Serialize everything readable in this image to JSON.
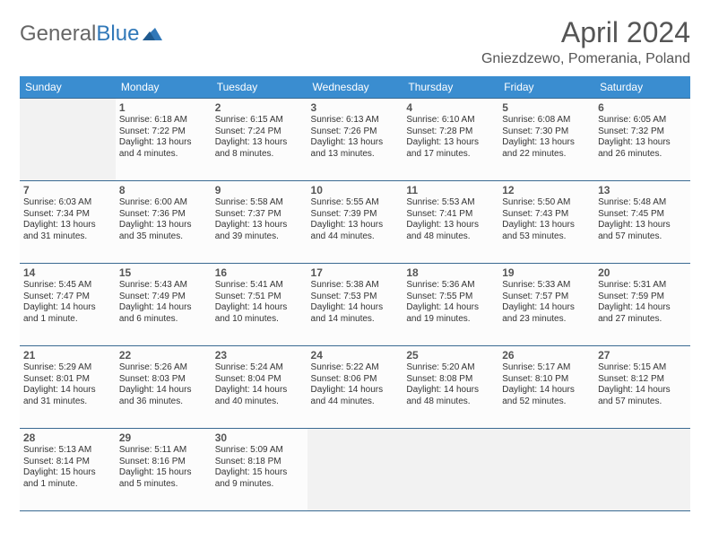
{
  "logo": {
    "text_gray": "General",
    "text_blue": "Blue"
  },
  "title": "April 2024",
  "location": "Gniezdzewo, Pomerania, Poland",
  "day_headers": [
    "Sunday",
    "Monday",
    "Tuesday",
    "Wednesday",
    "Thursday",
    "Friday",
    "Saturday"
  ],
  "colors": {
    "header_bg": "#3a8dd0",
    "header_text": "#ffffff",
    "cell_border": "#3a6a92",
    "blank_bg": "#f2f2f2",
    "text": "#333333",
    "title_text": "#555555"
  },
  "grid": {
    "first_day_column": 1,
    "days_in_month": 30
  },
  "days": {
    "1": {
      "sunrise": "6:18 AM",
      "sunset": "7:22 PM",
      "daylight": "13 hours and 4 minutes."
    },
    "2": {
      "sunrise": "6:15 AM",
      "sunset": "7:24 PM",
      "daylight": "13 hours and 8 minutes."
    },
    "3": {
      "sunrise": "6:13 AM",
      "sunset": "7:26 PM",
      "daylight": "13 hours and 13 minutes."
    },
    "4": {
      "sunrise": "6:10 AM",
      "sunset": "7:28 PM",
      "daylight": "13 hours and 17 minutes."
    },
    "5": {
      "sunrise": "6:08 AM",
      "sunset": "7:30 PM",
      "daylight": "13 hours and 22 minutes."
    },
    "6": {
      "sunrise": "6:05 AM",
      "sunset": "7:32 PM",
      "daylight": "13 hours and 26 minutes."
    },
    "7": {
      "sunrise": "6:03 AM",
      "sunset": "7:34 PM",
      "daylight": "13 hours and 31 minutes."
    },
    "8": {
      "sunrise": "6:00 AM",
      "sunset": "7:36 PM",
      "daylight": "13 hours and 35 minutes."
    },
    "9": {
      "sunrise": "5:58 AM",
      "sunset": "7:37 PM",
      "daylight": "13 hours and 39 minutes."
    },
    "10": {
      "sunrise": "5:55 AM",
      "sunset": "7:39 PM",
      "daylight": "13 hours and 44 minutes."
    },
    "11": {
      "sunrise": "5:53 AM",
      "sunset": "7:41 PM",
      "daylight": "13 hours and 48 minutes."
    },
    "12": {
      "sunrise": "5:50 AM",
      "sunset": "7:43 PM",
      "daylight": "13 hours and 53 minutes."
    },
    "13": {
      "sunrise": "5:48 AM",
      "sunset": "7:45 PM",
      "daylight": "13 hours and 57 minutes."
    },
    "14": {
      "sunrise": "5:45 AM",
      "sunset": "7:47 PM",
      "daylight": "14 hours and 1 minute."
    },
    "15": {
      "sunrise": "5:43 AM",
      "sunset": "7:49 PM",
      "daylight": "14 hours and 6 minutes."
    },
    "16": {
      "sunrise": "5:41 AM",
      "sunset": "7:51 PM",
      "daylight": "14 hours and 10 minutes."
    },
    "17": {
      "sunrise": "5:38 AM",
      "sunset": "7:53 PM",
      "daylight": "14 hours and 14 minutes."
    },
    "18": {
      "sunrise": "5:36 AM",
      "sunset": "7:55 PM",
      "daylight": "14 hours and 19 minutes."
    },
    "19": {
      "sunrise": "5:33 AM",
      "sunset": "7:57 PM",
      "daylight": "14 hours and 23 minutes."
    },
    "20": {
      "sunrise": "5:31 AM",
      "sunset": "7:59 PM",
      "daylight": "14 hours and 27 minutes."
    },
    "21": {
      "sunrise": "5:29 AM",
      "sunset": "8:01 PM",
      "daylight": "14 hours and 31 minutes."
    },
    "22": {
      "sunrise": "5:26 AM",
      "sunset": "8:03 PM",
      "daylight": "14 hours and 36 minutes."
    },
    "23": {
      "sunrise": "5:24 AM",
      "sunset": "8:04 PM",
      "daylight": "14 hours and 40 minutes."
    },
    "24": {
      "sunrise": "5:22 AM",
      "sunset": "8:06 PM",
      "daylight": "14 hours and 44 minutes."
    },
    "25": {
      "sunrise": "5:20 AM",
      "sunset": "8:08 PM",
      "daylight": "14 hours and 48 minutes."
    },
    "26": {
      "sunrise": "5:17 AM",
      "sunset": "8:10 PM",
      "daylight": "14 hours and 52 minutes."
    },
    "27": {
      "sunrise": "5:15 AM",
      "sunset": "8:12 PM",
      "daylight": "14 hours and 57 minutes."
    },
    "28": {
      "sunrise": "5:13 AM",
      "sunset": "8:14 PM",
      "daylight": "15 hours and 1 minute."
    },
    "29": {
      "sunrise": "5:11 AM",
      "sunset": "8:16 PM",
      "daylight": "15 hours and 5 minutes."
    },
    "30": {
      "sunrise": "5:09 AM",
      "sunset": "8:18 PM",
      "daylight": "15 hours and 9 minutes."
    }
  },
  "field_labels": {
    "sunrise": "Sunrise: ",
    "sunset": "Sunset: ",
    "daylight": "Daylight: "
  }
}
